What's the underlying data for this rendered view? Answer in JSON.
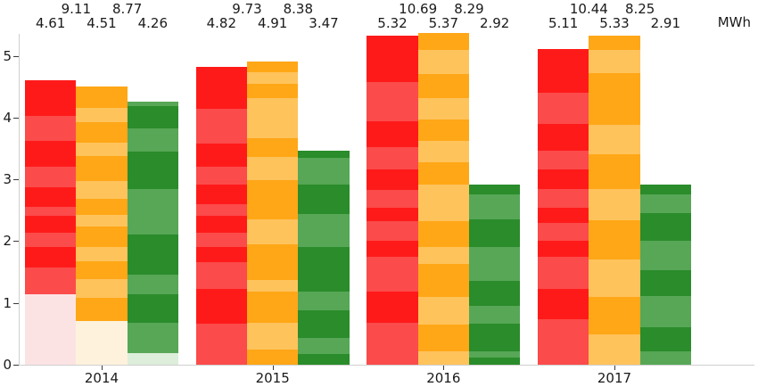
{
  "chart_data": {
    "type": "bar",
    "title": "",
    "unit": "MWh",
    "categories": [
      "2014",
      "2015",
      "2016",
      "2017"
    ],
    "yticks": [
      0,
      1,
      2,
      3,
      4,
      5
    ],
    "ylim": [
      0,
      5.6
    ],
    "grid": false,
    "legend": "none",
    "description": "Grouped striped stacked bars; per-bar totals above bars, pairwise sums of adjacent bars on top row; 2014 bars have faded bottom segments",
    "series": [
      {
        "name": "red-series",
        "shades": [
          "#ff1a1a",
          "#fb4b4b",
          "#fce3e3"
        ],
        "values": [
          4.61,
          4.82,
          5.32,
          5.11
        ],
        "value_labels": [
          "4.61",
          "4.82",
          "5.32",
          "5.11"
        ],
        "segments": [
          [
            [
              0,
              1.14,
              2
            ],
            [
              1.14,
              1.58,
              1
            ],
            [
              1.58,
              1.9,
              0
            ],
            [
              1.9,
              2.13,
              1
            ],
            [
              2.13,
              2.41,
              0
            ],
            [
              2.41,
              2.55,
              1
            ],
            [
              2.55,
              2.87,
              0
            ],
            [
              2.87,
              3.21,
              1
            ],
            [
              3.21,
              3.62,
              0
            ],
            [
              3.62,
              4.03,
              1
            ],
            [
              4.03,
              4.61,
              0
            ]
          ],
          [
            [
              0,
              0.66,
              1
            ],
            [
              0.66,
              1.23,
              0
            ],
            [
              1.23,
              1.66,
              1
            ],
            [
              1.66,
              1.9,
              0
            ],
            [
              1.9,
              2.14,
              1
            ],
            [
              2.14,
              2.41,
              0
            ],
            [
              2.41,
              2.6,
              1
            ],
            [
              2.6,
              2.92,
              0
            ],
            [
              2.92,
              3.21,
              1
            ],
            [
              3.21,
              3.58,
              0
            ],
            [
              3.58,
              4.14,
              1
            ],
            [
              4.14,
              4.82,
              0
            ]
          ],
          [
            [
              0,
              0.68,
              1
            ],
            [
              0.68,
              1.19,
              0
            ],
            [
              1.19,
              1.74,
              1
            ],
            [
              1.74,
              2.01,
              0
            ],
            [
              2.01,
              2.32,
              1
            ],
            [
              2.32,
              2.54,
              0
            ],
            [
              2.54,
              2.83,
              1
            ],
            [
              2.83,
              3.16,
              0
            ],
            [
              3.16,
              3.52,
              1
            ],
            [
              3.52,
              3.94,
              0
            ],
            [
              3.94,
              4.58,
              1
            ],
            [
              4.58,
              5.32,
              0
            ]
          ],
          [
            [
              0,
              0.73,
              1
            ],
            [
              0.73,
              1.22,
              0
            ],
            [
              1.22,
              1.74,
              1
            ],
            [
              1.74,
              2.01,
              0
            ],
            [
              2.01,
              2.29,
              1
            ],
            [
              2.29,
              2.54,
              0
            ],
            [
              2.54,
              2.84,
              1
            ],
            [
              2.84,
              3.16,
              0
            ],
            [
              3.16,
              3.47,
              1
            ],
            [
              3.47,
              3.9,
              0
            ],
            [
              3.9,
              4.4,
              1
            ],
            [
              4.4,
              5.11,
              0
            ]
          ]
        ]
      },
      {
        "name": "orange-series",
        "shades": [
          "#ffa717",
          "#ffc35c",
          "#fef2dd"
        ],
        "values": [
          4.51,
          4.91,
          5.37,
          5.33
        ],
        "value_labels": [
          "4.51",
          "4.91",
          "5.37",
          "5.33"
        ],
        "segments": [
          [
            [
              0,
              0.71,
              2
            ],
            [
              0.71,
              1.08,
              0
            ],
            [
              1.08,
              1.38,
              1
            ],
            [
              1.38,
              1.67,
              0
            ],
            [
              1.67,
              1.91,
              1
            ],
            [
              1.91,
              2.24,
              0
            ],
            [
              2.24,
              2.42,
              1
            ],
            [
              2.42,
              2.68,
              0
            ],
            [
              2.68,
              2.98,
              1
            ],
            [
              2.98,
              3.38,
              0
            ],
            [
              3.38,
              3.6,
              1
            ],
            [
              3.6,
              3.92,
              0
            ],
            [
              3.92,
              4.15,
              1
            ],
            [
              4.15,
              4.51,
              0
            ]
          ],
          [
            [
              0,
              0.24,
              0
            ],
            [
              0.24,
              0.68,
              1
            ],
            [
              0.68,
              1.19,
              0
            ],
            [
              1.19,
              1.37,
              1
            ],
            [
              1.37,
              1.95,
              0
            ],
            [
              1.95,
              2.35,
              1
            ],
            [
              2.35,
              2.99,
              0
            ],
            [
              2.99,
              3.37,
              1
            ],
            [
              3.37,
              3.66,
              0
            ],
            [
              3.66,
              4.31,
              1
            ],
            [
              4.31,
              4.55,
              0
            ],
            [
              4.55,
              4.74,
              1
            ],
            [
              4.74,
              4.91,
              0
            ]
          ],
          [
            [
              0,
              0.21,
              1
            ],
            [
              0.21,
              0.65,
              0
            ],
            [
              0.65,
              1.1,
              1
            ],
            [
              1.1,
              1.63,
              0
            ],
            [
              1.63,
              1.9,
              1
            ],
            [
              1.9,
              2.33,
              0
            ],
            [
              2.33,
              2.91,
              1
            ],
            [
              2.91,
              3.27,
              0
            ],
            [
              3.27,
              3.63,
              1
            ],
            [
              3.63,
              3.97,
              0
            ],
            [
              3.97,
              4.32,
              1
            ],
            [
              4.32,
              4.7,
              0
            ],
            [
              4.7,
              5.1,
              1
            ],
            [
              5.1,
              5.37,
              0
            ]
          ],
          [
            [
              0,
              0.49,
              1
            ],
            [
              0.49,
              1.09,
              0
            ],
            [
              1.09,
              1.71,
              1
            ],
            [
              1.71,
              2.34,
              0
            ],
            [
              2.34,
              2.84,
              1
            ],
            [
              2.84,
              3.4,
              0
            ],
            [
              3.4,
              3.88,
              1
            ],
            [
              3.88,
              4.72,
              0
            ],
            [
              4.72,
              5.09,
              1
            ],
            [
              5.09,
              5.33,
              0
            ]
          ]
        ]
      },
      {
        "name": "green-series",
        "shades": [
          "#2a8c2a",
          "#57a757",
          "#ddeeda"
        ],
        "values": [
          4.26,
          3.47,
          2.92,
          2.91
        ],
        "value_labels": [
          "4.26",
          "3.47",
          "2.92",
          "2.91"
        ],
        "segments": [
          [
            [
              0,
              0.19,
              2
            ],
            [
              0.19,
              0.68,
              1
            ],
            [
              0.68,
              1.14,
              0
            ],
            [
              1.14,
              1.46,
              1
            ],
            [
              1.46,
              2.11,
              0
            ],
            [
              2.11,
              2.85,
              1
            ],
            [
              2.85,
              3.45,
              0
            ],
            [
              3.45,
              3.83,
              1
            ],
            [
              3.83,
              4.18,
              0
            ],
            [
              4.18,
              4.26,
              1
            ]
          ],
          [
            [
              0,
              0.18,
              0
            ],
            [
              0.18,
              0.44,
              1
            ],
            [
              0.44,
              0.88,
              0
            ],
            [
              0.88,
              1.19,
              1
            ],
            [
              1.19,
              1.91,
              0
            ],
            [
              1.91,
              2.44,
              1
            ],
            [
              2.44,
              2.92,
              0
            ],
            [
              2.92,
              3.35,
              1
            ],
            [
              3.35,
              3.47,
              0
            ]
          ],
          [
            [
              0,
              0.12,
              0
            ],
            [
              0.12,
              0.22,
              1
            ],
            [
              0.22,
              0.66,
              0
            ],
            [
              0.66,
              0.95,
              1
            ],
            [
              0.95,
              1.36,
              0
            ],
            [
              1.36,
              1.9,
              1
            ],
            [
              1.9,
              2.35,
              0
            ],
            [
              2.35,
              2.75,
              1
            ],
            [
              2.75,
              2.92,
              0
            ]
          ],
          [
            [
              0,
              0.22,
              1
            ],
            [
              0.22,
              0.61,
              0
            ],
            [
              0.61,
              1.11,
              1
            ],
            [
              1.11,
              1.53,
              0
            ],
            [
              1.53,
              2.01,
              1
            ],
            [
              2.01,
              2.45,
              0
            ],
            [
              2.45,
              2.75,
              1
            ],
            [
              2.75,
              2.91,
              0
            ]
          ]
        ]
      }
    ],
    "pair_sum_labels": [
      [
        "9.11",
        "8.77"
      ],
      [
        "9.73",
        "8.38"
      ],
      [
        "10.69",
        "8.29"
      ],
      [
        "10.44",
        "8.25"
      ]
    ]
  }
}
